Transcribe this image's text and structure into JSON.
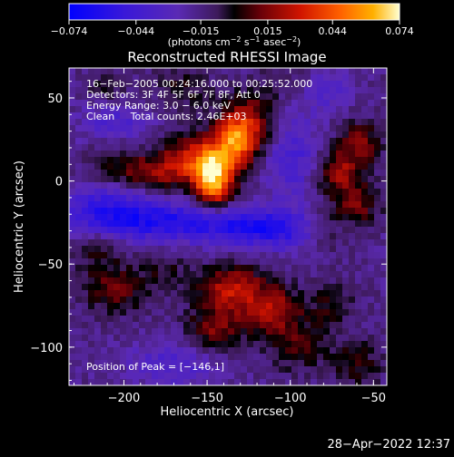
{
  "chart_data": {
    "type": "heatmap",
    "title": "Reconstructed RHESSI Image",
    "xlabel": "Heliocentric X (arcsec)",
    "ylabel": "Heliocentric Y (arcsec)",
    "xlim": [
      -233,
      -42
    ],
    "ylim": [
      -123,
      68
    ],
    "x_ticks": [
      -200,
      -150,
      -100,
      -50
    ],
    "y_ticks": [
      50,
      0,
      -50,
      -100
    ],
    "x_tick_labels": [
      "−200",
      "−150",
      "−100",
      "−50"
    ],
    "y_tick_labels": [
      "50",
      "0",
      "−50",
      "−100"
    ],
    "colorbar": {
      "min": -0.074,
      "max": 0.074,
      "ticks": [
        -0.074,
        -0.044,
        -0.015,
        0.015,
        0.044,
        0.074
      ],
      "tick_labels": [
        "−0.074",
        "−0.044",
        "−0.015",
        "0.015",
        "0.044",
        "0.074"
      ],
      "unit_label": "(photons cm",
      "unit_exp1": "−2",
      "unit_mid": " s",
      "unit_exp2": "−1",
      "unit_mid2": " asec",
      "unit_exp3": "−2",
      "unit_end": ")"
    },
    "annotations": [
      "16−Feb−2005 00:24:16.000 to 00:25:52.000",
      "Detectors: 3F 4F 5F 6F 7F 8F, Att 0",
      "Energy Range: 3.0 − 6.0 keV",
      "Clean     Total counts: 2.46E+03"
    ],
    "peak_label": "Position of Peak = [−146,1]",
    "peak": [
      -146,
      1
    ],
    "sources": [
      {
        "x": -146,
        "y": 1,
        "amp": 1.0,
        "sx": 8,
        "sy": 12
      },
      {
        "x": -133,
        "y": 25,
        "amp": 0.85,
        "sx": 9,
        "sy": 12
      },
      {
        "x": -158,
        "y": 14,
        "amp": 0.55,
        "sx": 13,
        "sy": 10
      },
      {
        "x": -182,
        "y": 5,
        "amp": 0.38,
        "sx": 16,
        "sy": 8
      },
      {
        "x": -205,
        "y": 12,
        "amp": 0.2,
        "sx": 12,
        "sy": 10
      },
      {
        "x": -120,
        "y": 35,
        "amp": 0.35,
        "sx": 10,
        "sy": 14
      },
      {
        "x": -72,
        "y": 5,
        "amp": 0.45,
        "sx": 9,
        "sy": 9
      },
      {
        "x": -58,
        "y": 22,
        "amp": 0.4,
        "sx": 9,
        "sy": 10
      },
      {
        "x": -60,
        "y": -15,
        "amp": 0.38,
        "sx": 10,
        "sy": 10
      },
      {
        "x": -80,
        "y": -30,
        "amp": 0.25,
        "sx": 10,
        "sy": 9
      },
      {
        "x": -135,
        "y": -65,
        "amp": 0.55,
        "sx": 14,
        "sy": 10
      },
      {
        "x": -110,
        "y": -78,
        "amp": 0.5,
        "sx": 12,
        "sy": 10
      },
      {
        "x": -145,
        "y": -90,
        "amp": 0.4,
        "sx": 12,
        "sy": 10
      },
      {
        "x": -95,
        "y": -100,
        "amp": 0.3,
        "sx": 12,
        "sy": 10
      },
      {
        "x": -205,
        "y": -65,
        "amp": 0.35,
        "sx": 14,
        "sy": 10
      },
      {
        "x": -215,
        "y": -40,
        "amp": 0.22,
        "sx": 10,
        "sy": 10
      },
      {
        "x": -175,
        "y": -55,
        "amp": 0.18,
        "sx": 10,
        "sy": 8
      },
      {
        "x": -75,
        "y": -75,
        "amp": 0.22,
        "sx": 10,
        "sy": 10
      },
      {
        "x": -60,
        "y": -110,
        "amp": 0.28,
        "sx": 10,
        "sy": 10
      },
      {
        "x": -165,
        "y": 55,
        "amp": 0.22,
        "sx": 14,
        "sy": 8
      },
      {
        "x": -210,
        "y": 55,
        "amp": 0.18,
        "sx": 10,
        "sy": 8
      },
      {
        "x": -100,
        "y": 60,
        "amp": 0.15,
        "sx": 10,
        "sy": 8
      },
      {
        "x": -170,
        "y": -25,
        "amp": -0.55,
        "sx": 40,
        "sy": 8
      },
      {
        "x": -110,
        "y": -30,
        "amp": -0.45,
        "sx": 25,
        "sy": 8
      },
      {
        "x": -210,
        "y": -15,
        "amp": -0.4,
        "sx": 20,
        "sy": 10
      },
      {
        "x": -100,
        "y": 15,
        "amp": -0.35,
        "sx": 12,
        "sy": 18
      },
      {
        "x": -205,
        "y": 35,
        "amp": -0.3,
        "sx": 15,
        "sy": 10
      },
      {
        "x": -170,
        "y": -110,
        "amp": -0.3,
        "sx": 20,
        "sy": 10
      },
      {
        "x": -80,
        "y": 55,
        "amp": -0.25,
        "sx": 12,
        "sy": 10
      }
    ]
  },
  "timestamp": "28−Apr−2022 12:37"
}
